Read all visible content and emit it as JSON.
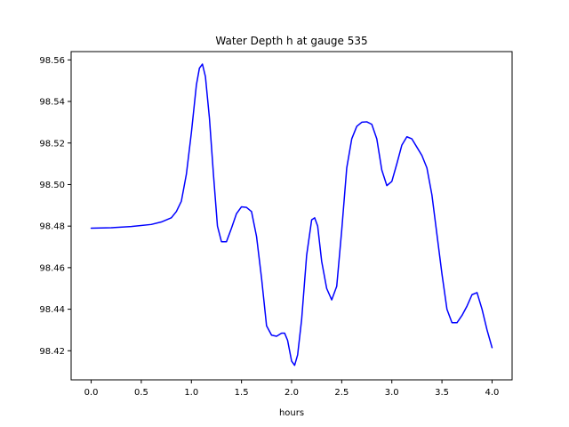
{
  "chart_data": {
    "type": "line",
    "title": "Water Depth h at gauge 535",
    "xlabel": "hours",
    "ylabel": "",
    "xlim": [
      -0.2,
      4.2
    ],
    "ylim": [
      98.406,
      98.564
    ],
    "xticks": [
      0.0,
      0.5,
      1.0,
      1.5,
      2.0,
      2.5,
      3.0,
      3.5,
      4.0
    ],
    "xtick_labels": [
      "0.0",
      "0.5",
      "1.0",
      "1.5",
      "2.0",
      "2.5",
      "3.0",
      "3.5",
      "4.0"
    ],
    "yticks": [
      98.42,
      98.44,
      98.46,
      98.48,
      98.5,
      98.52,
      98.54,
      98.56
    ],
    "ytick_labels": [
      "98.42",
      "98.44",
      "98.46",
      "98.48",
      "98.50",
      "98.52",
      "98.54",
      "98.56"
    ],
    "grid": false,
    "series": [
      {
        "color": "#0000ff",
        "x": [
          0.0,
          0.2,
          0.4,
          0.6,
          0.7,
          0.8,
          0.85,
          0.9,
          0.95,
          1.0,
          1.05,
          1.08,
          1.11,
          1.14,
          1.18,
          1.22,
          1.26,
          1.3,
          1.35,
          1.4,
          1.45,
          1.5,
          1.55,
          1.6,
          1.65,
          1.7,
          1.75,
          1.8,
          1.85,
          1.9,
          1.93,
          1.96,
          2.0,
          2.03,
          2.06,
          2.1,
          2.15,
          2.2,
          2.23,
          2.26,
          2.3,
          2.35,
          2.4,
          2.45,
          2.5,
          2.55,
          2.6,
          2.65,
          2.7,
          2.75,
          2.8,
          2.85,
          2.9,
          2.95,
          3.0,
          3.05,
          3.1,
          3.15,
          3.2,
          3.25,
          3.3,
          3.35,
          3.4,
          3.45,
          3.5,
          3.55,
          3.6,
          3.65,
          3.7,
          3.75,
          3.8,
          3.85,
          3.9,
          3.95,
          4.0
        ],
        "y": [
          98.479,
          98.4792,
          98.4798,
          98.4808,
          98.482,
          98.484,
          98.487,
          98.492,
          98.505,
          98.525,
          98.548,
          98.556,
          98.558,
          98.552,
          98.532,
          98.505,
          98.48,
          98.4725,
          98.4725,
          98.479,
          98.486,
          98.4893,
          98.489,
          98.487,
          98.475,
          98.455,
          98.432,
          98.4275,
          98.427,
          98.4285,
          98.4285,
          98.425,
          98.415,
          98.413,
          98.418,
          98.435,
          98.466,
          98.483,
          98.484,
          98.48,
          98.463,
          98.45,
          98.4445,
          98.451,
          98.478,
          98.508,
          98.522,
          98.528,
          98.53,
          98.5302,
          98.529,
          98.522,
          98.507,
          98.4995,
          98.5015,
          98.51,
          98.519,
          98.523,
          98.522,
          98.518,
          98.514,
          98.508,
          98.495,
          98.476,
          98.457,
          98.44,
          98.4335,
          98.4335,
          98.437,
          98.4415,
          98.447,
          98.448,
          98.44,
          98.43,
          98.4215
        ]
      }
    ]
  }
}
